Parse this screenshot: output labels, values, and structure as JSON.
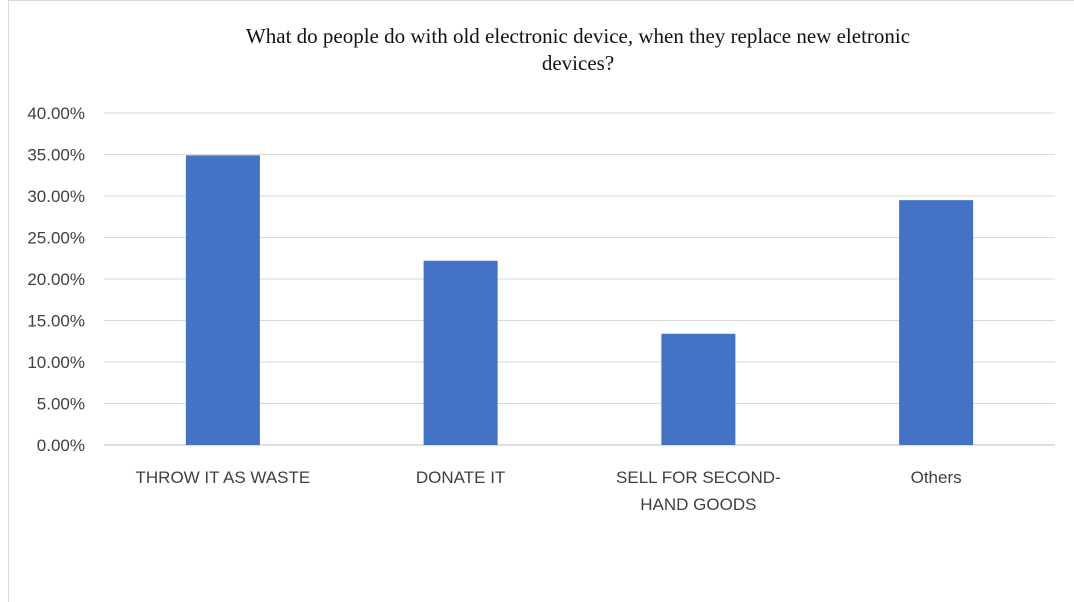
{
  "chart_data": {
    "type": "bar",
    "title_lines": [
      "What do people do with old electronic device, when they replace new eletronic",
      "devices?"
    ],
    "categories": [
      [
        "THROW IT AS WASTE"
      ],
      [
        "DONATE IT"
      ],
      [
        "SELL FOR SECOND-",
        "HAND GOODS"
      ],
      [
        "Others"
      ]
    ],
    "values": [
      0.349,
      0.222,
      0.134,
      0.295
    ],
    "y_ticks": [
      "0.00%",
      "5.00%",
      "10.00%",
      "15.00%",
      "20.00%",
      "25.00%",
      "30.00%",
      "35.00%",
      "40.00%"
    ],
    "ylim": [
      0,
      0.4
    ],
    "grid": true,
    "bar_color": "#4472C4"
  }
}
